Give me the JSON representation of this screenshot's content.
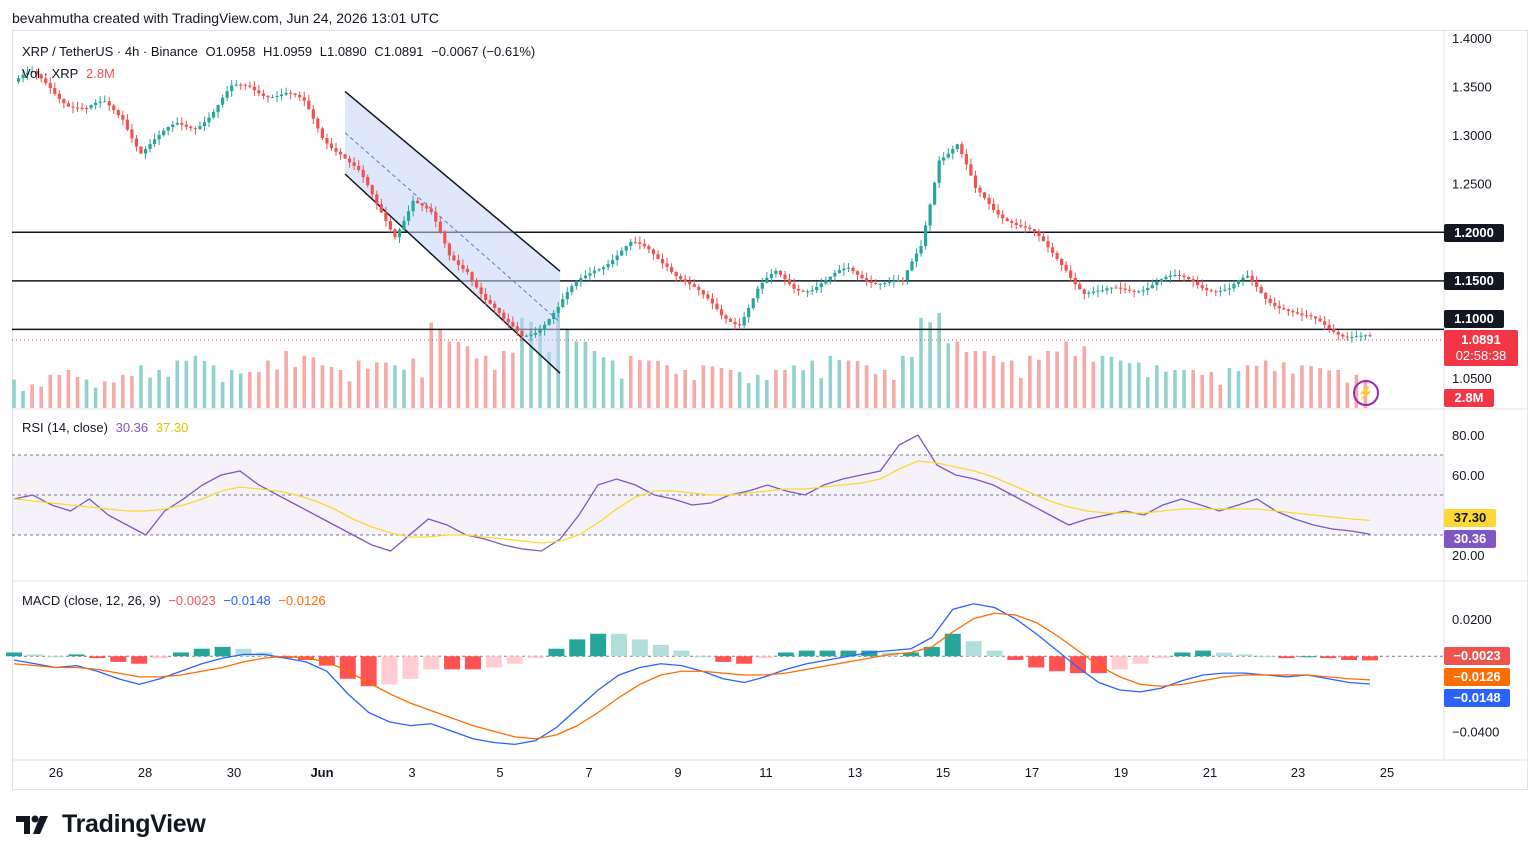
{
  "header": {
    "credit": "bevahmutha created with TradingView.com, Jun 24, 2026 13:01 UTC"
  },
  "main_legend": {
    "symbol": "XRP / TetherUS · 4h · Binance",
    "open": "O1.0958",
    "high": "H1.0959",
    "low": "L1.0890",
    "close": "C1.0891",
    "change": "−0.0067 (−0.61%)"
  },
  "vol_legend": {
    "label": "Vol · XRP",
    "value": "2.8M"
  },
  "rsi_legend": {
    "label": "RSI (14, close)",
    "rsi_value": "30.36",
    "ma_value": "37.30"
  },
  "macd_legend": {
    "label": "MACD (close, 12, 26, 9)",
    "hist": "−0.0023",
    "macd": "−0.0148",
    "signal": "−0.0126"
  },
  "price_axis": {
    "ticks": [
      "1.4000",
      "1.3500",
      "1.3000",
      "1.2500",
      "1.2000",
      "1.1500",
      "1.1000",
      "1.0500"
    ],
    "current_price": "1.0891",
    "countdown": "02:58:38",
    "volume_tag": "2.8M"
  },
  "rsi_axis": {
    "ticks": [
      "80.00",
      "60.00",
      "20.00"
    ],
    "ma_tag": "37.30",
    "rsi_tag": "30.36"
  },
  "macd_axis": {
    "ticks": [
      "0.0200",
      "−0.0400"
    ],
    "hist_tag": "−0.0023",
    "signal_tag": "−0.0126",
    "macd_tag": "−0.0148"
  },
  "time_axis": [
    "26",
    "28",
    "30",
    "Jun",
    "3",
    "5",
    "7",
    "9",
    "11",
    "13",
    "15",
    "17",
    "19",
    "21",
    "23",
    "25"
  ],
  "brand": {
    "name": "TradingView"
  },
  "colors": {
    "up": "#26a69a",
    "down": "#ef5350",
    "vol_up": "#92d2cc",
    "vol_down": "#f7a9a7",
    "rsi": "#7e57c2",
    "rsi_ma": "#fdd835",
    "macd": "#2962ff",
    "signal": "#ff6d00",
    "channel_fill": "#c5d5f7",
    "price_tag": "#f23645"
  },
  "chart_data": [
    {
      "type": "candlestick",
      "title": "XRP / TetherUS · 4h · Binance",
      "x_axis": [
        "26",
        "28",
        "30",
        "Jun",
        "3",
        "5",
        "7",
        "9",
        "11",
        "13",
        "15",
        "17",
        "19",
        "21",
        "23",
        "25"
      ],
      "ylim": [
        1.03,
        1.405
      ],
      "horizontal_levels": [
        1.2,
        1.15,
        1.1
      ],
      "descending_channel": {
        "upper": [
          [
            1.345,
            "Jun 1"
          ],
          [
            1.16,
            "Jun 6"
          ]
        ],
        "lower": [
          [
            1.26,
            "Jun 1"
          ],
          [
            1.055,
            "Jun 6"
          ]
        ]
      },
      "close_path": [
        [
          0,
          1.355
        ],
        [
          4,
          1.36
        ],
        [
          8,
          1.35
        ],
        [
          12,
          1.335
        ],
        [
          16,
          1.325
        ],
        [
          20,
          1.33
        ],
        [
          24,
          1.32
        ],
        [
          28,
          1.285
        ],
        [
          32,
          1.295
        ],
        [
          36,
          1.31
        ],
        [
          40,
          1.312
        ],
        [
          44,
          1.325
        ],
        [
          48,
          1.345
        ],
        [
          52,
          1.35
        ],
        [
          56,
          1.345
        ],
        [
          60,
          1.342
        ],
        [
          64,
          1.33
        ],
        [
          68,
          1.3
        ],
        [
          72,
          1.285
        ],
        [
          76,
          1.26
        ],
        [
          80,
          1.225
        ],
        [
          84,
          1.2
        ],
        [
          88,
          1.235
        ],
        [
          92,
          1.215
        ],
        [
          96,
          1.175
        ],
        [
          100,
          1.165
        ],
        [
          104,
          1.13
        ],
        [
          108,
          1.105
        ],
        [
          112,
          1.095
        ],
        [
          116,
          1.105
        ],
        [
          120,
          1.12
        ],
        [
          124,
          1.145
        ],
        [
          128,
          1.165
        ],
        [
          132,
          1.175
        ],
        [
          136,
          1.185
        ],
        [
          140,
          1.18
        ],
        [
          144,
          1.17
        ],
        [
          148,
          1.15
        ],
        [
          152,
          1.13
        ],
        [
          156,
          1.115
        ],
        [
          160,
          1.11
        ],
        [
          164,
          1.14
        ],
        [
          168,
          1.155
        ],
        [
          172,
          1.145
        ],
        [
          176,
          1.145
        ],
        [
          180,
          1.15
        ],
        [
          184,
          1.16
        ],
        [
          188,
          1.155
        ],
        [
          192,
          1.15
        ],
        [
          196,
          1.145
        ],
        [
          200,
          1.185
        ],
        [
          204,
          1.28
        ],
        [
          208,
          1.29
        ],
        [
          212,
          1.24
        ],
        [
          216,
          1.225
        ],
        [
          220,
          1.215
        ],
        [
          224,
          1.2
        ],
        [
          228,
          1.18
        ],
        [
          232,
          1.165
        ],
        [
          236,
          1.14
        ],
        [
          240,
          1.135
        ],
        [
          244,
          1.14
        ],
        [
          248,
          1.145
        ],
        [
          252,
          1.15
        ],
        [
          256,
          1.15
        ],
        [
          260,
          1.15
        ],
        [
          264,
          1.145
        ],
        [
          268,
          1.14
        ],
        [
          272,
          1.15
        ],
        [
          276,
          1.135
        ],
        [
          280,
          1.125
        ],
        [
          284,
          1.11
        ],
        [
          288,
          1.105
        ],
        [
          292,
          1.1
        ],
        [
          296,
          1.095
        ],
        [
          299,
          1.0891
        ]
      ],
      "volume_values_relative": [
        0.3,
        0.25,
        0.35,
        0.4,
        0.3,
        0.28,
        0.35,
        0.45,
        0.4,
        0.5,
        0.55,
        0.45,
        0.4,
        0.38,
        0.5,
        0.6,
        0.55,
        0.45,
        0.4,
        0.5,
        0.48,
        0.45,
        0.52,
        0.9,
        0.7,
        0.65,
        0.55,
        0.6,
        0.95,
        0.85,
        1.0,
        0.7,
        0.6,
        0.5,
        0.55,
        0.5,
        0.45,
        0.4,
        0.45,
        0.42,
        0.38,
        0.35,
        0.4,
        0.45,
        0.5,
        0.55,
        0.5,
        0.45,
        0.4,
        0.55,
        0.95,
        1.0,
        0.7,
        0.6,
        0.55,
        0.5,
        0.55,
        0.6,
        0.7,
        0.65,
        0.55,
        0.5,
        0.48,
        0.45,
        0.4,
        0.4,
        0.38,
        0.42,
        0.45,
        0.5,
        0.48,
        0.45,
        0.42,
        0.4,
        0.35
      ]
    },
    {
      "type": "line",
      "title": "RSI (14, close)",
      "ylim": [
        10,
        90
      ],
      "bands": [
        70,
        50,
        30
      ],
      "series": [
        {
          "name": "RSI",
          "values": [
            48,
            50,
            45,
            42,
            48,
            40,
            35,
            30,
            42,
            48,
            55,
            60,
            62,
            55,
            50,
            45,
            40,
            35,
            30,
            25,
            22,
            30,
            38,
            35,
            30,
            28,
            25,
            23,
            22,
            28,
            40,
            55,
            58,
            55,
            50,
            48,
            45,
            46,
            50,
            52,
            55,
            52,
            50,
            55,
            58,
            60,
            62,
            75,
            80,
            65,
            60,
            58,
            55,
            50,
            45,
            40,
            35,
            38,
            40,
            42,
            40,
            45,
            48,
            45,
            42,
            45,
            48,
            42,
            38,
            35,
            33,
            32,
            30.36
          ]
        },
        {
          "name": "MA",
          "values": [
            48,
            47,
            46,
            45,
            44,
            43,
            42,
            42,
            43,
            45,
            48,
            52,
            54,
            53,
            52,
            50,
            47,
            43,
            38,
            34,
            31,
            29,
            29,
            30,
            30,
            29,
            28,
            27,
            26,
            27,
            30,
            36,
            43,
            49,
            52,
            52,
            51,
            50,
            50,
            51,
            52,
            53,
            53,
            54,
            55,
            56,
            58,
            63,
            67,
            66,
            64,
            62,
            59,
            55,
            51,
            47,
            44,
            42,
            41,
            41,
            41,
            42,
            43,
            43,
            43,
            43,
            43,
            42,
            41,
            40,
            39,
            38,
            37.3
          ]
        }
      ]
    },
    {
      "type": "line",
      "title": "MACD (close, 12, 26, 9)",
      "ylim": [
        -0.05,
        0.03
      ],
      "series": [
        {
          "name": "MACD",
          "values": [
            -0.002,
            -0.004,
            -0.006,
            -0.005,
            -0.008,
            -0.012,
            -0.015,
            -0.012,
            -0.008,
            -0.004,
            -0.001,
            0.001,
            0.001,
            -0.001,
            -0.003,
            -0.008,
            -0.02,
            -0.03,
            -0.035,
            -0.037,
            -0.036,
            -0.04,
            -0.044,
            -0.046,
            -0.047,
            -0.045,
            -0.038,
            -0.028,
            -0.018,
            -0.01,
            -0.006,
            -0.004,
            -0.005,
            -0.008,
            -0.012,
            -0.014,
            -0.011,
            -0.007,
            -0.004,
            -0.002,
            0.0,
            0.002,
            0.003,
            0.004,
            0.01,
            0.025,
            0.028,
            0.026,
            0.02,
            0.012,
            0.003,
            -0.006,
            -0.014,
            -0.018,
            -0.019,
            -0.017,
            -0.013,
            -0.01,
            -0.009,
            -0.009,
            -0.01,
            -0.011,
            -0.01,
            -0.012,
            -0.014,
            -0.0148
          ]
        },
        {
          "name": "Signal",
          "values": [
            -0.004,
            -0.005,
            -0.006,
            -0.006,
            -0.007,
            -0.009,
            -0.011,
            -0.011,
            -0.01,
            -0.008,
            -0.006,
            -0.003,
            -0.001,
            0.0,
            -0.001,
            -0.003,
            -0.008,
            -0.014,
            -0.02,
            -0.025,
            -0.029,
            -0.033,
            -0.037,
            -0.04,
            -0.043,
            -0.044,
            -0.042,
            -0.037,
            -0.03,
            -0.022,
            -0.015,
            -0.01,
            -0.008,
            -0.008,
            -0.009,
            -0.01,
            -0.01,
            -0.009,
            -0.007,
            -0.005,
            -0.003,
            -0.001,
            0.001,
            0.002,
            0.005,
            0.013,
            0.02,
            0.023,
            0.022,
            0.018,
            0.011,
            0.003,
            -0.005,
            -0.011,
            -0.015,
            -0.016,
            -0.015,
            -0.013,
            -0.011,
            -0.01,
            -0.01,
            -0.01,
            -0.01,
            -0.011,
            -0.012,
            -0.0126
          ]
        }
      ]
    }
  ]
}
